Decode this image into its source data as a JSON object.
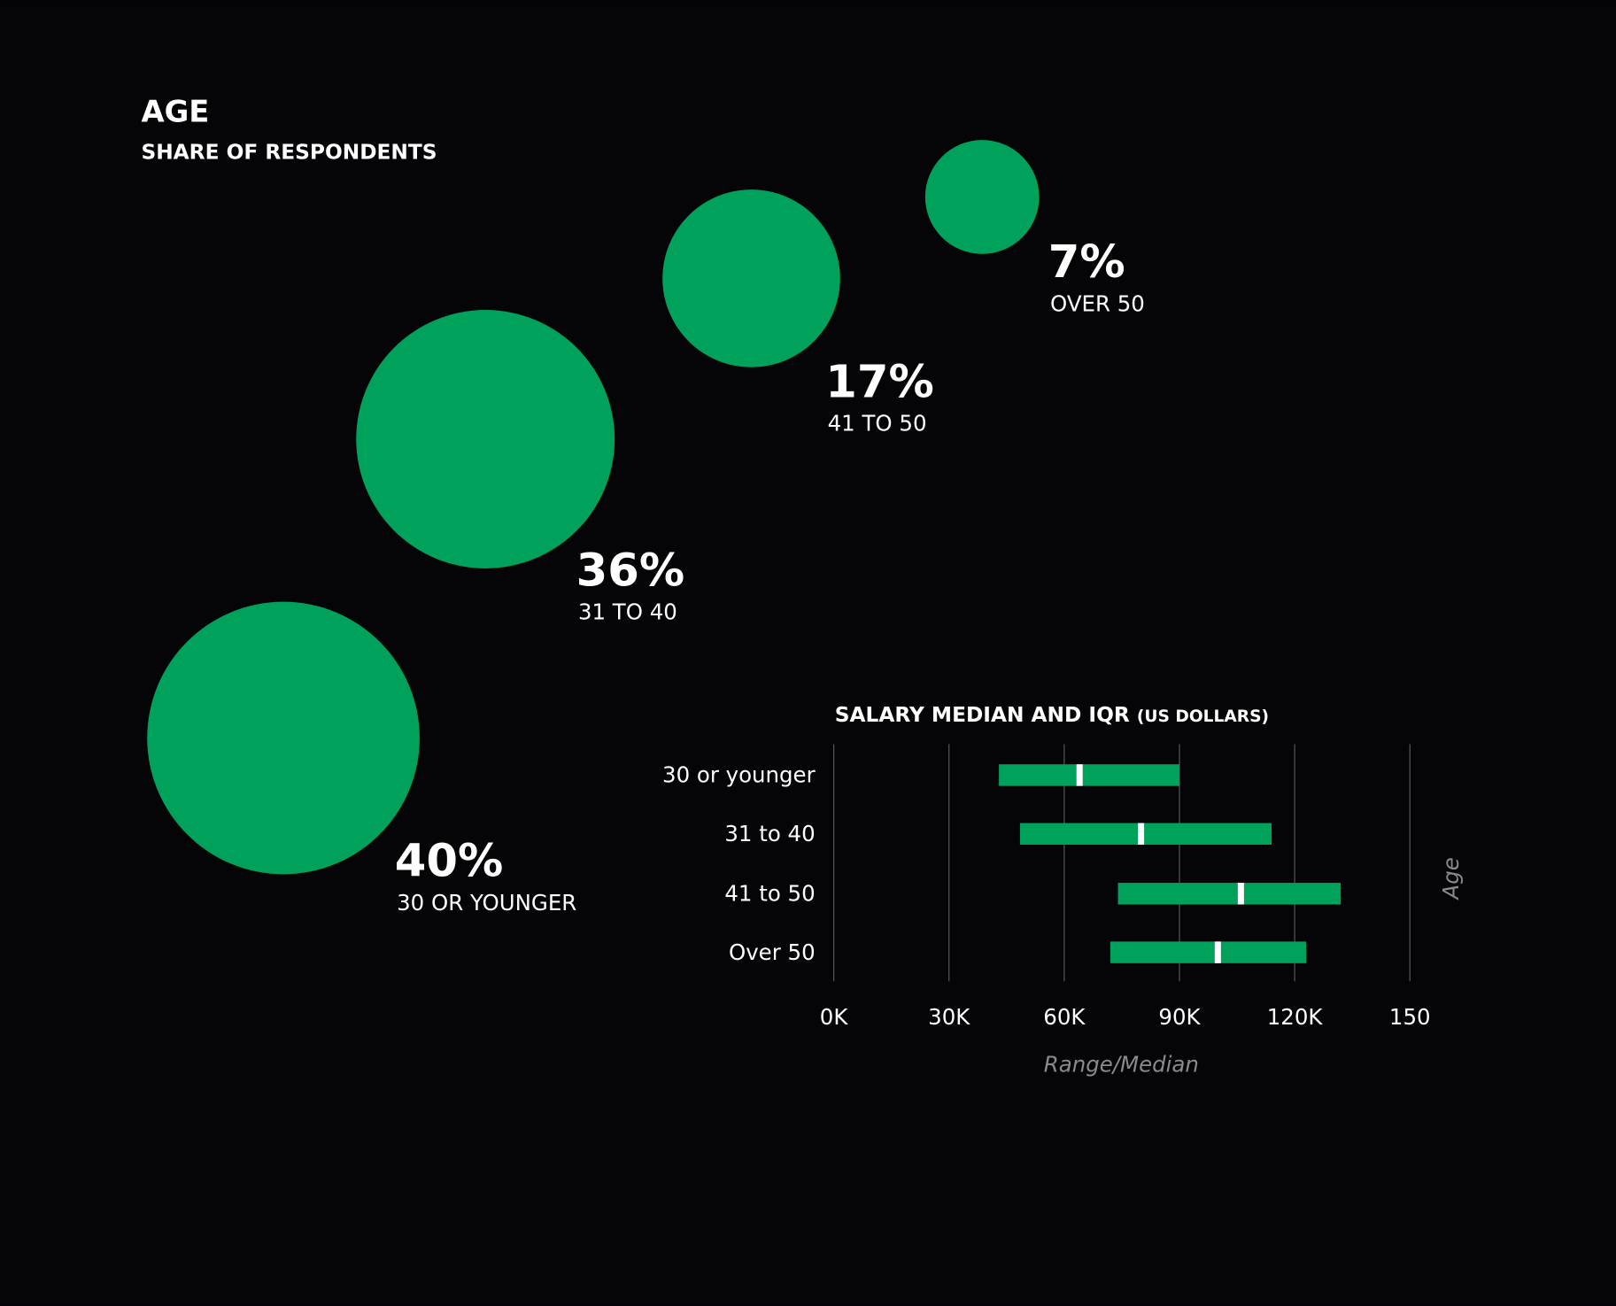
{
  "chart_data": [
    {
      "type": "bubble",
      "title": "AGE",
      "subtitle": "SHARE OF RESPONDENTS",
      "categories": [
        "30 OR YOUNGER",
        "31 TO 40",
        "41 TO 50",
        "OVER 50"
      ],
      "values": [
        40,
        36,
        17,
        7
      ],
      "value_labels": [
        "40%",
        "36%",
        "17%",
        "7%"
      ],
      "color": "#00a25b"
    },
    {
      "type": "range",
      "title": "SALARY MEDIAN AND IQR",
      "subtitle": "(US DOLLARS)",
      "categories": [
        "30 or younger",
        "31 to 40",
        "41 to 50",
        "Over 50"
      ],
      "low": [
        43,
        48.5,
        74,
        72
      ],
      "median": [
        64,
        80,
        106,
        100
      ],
      "high": [
        90,
        114,
        132,
        123
      ],
      "color": "#00a25b",
      "median_color": "#ffffff",
      "xlim": [
        0,
        150
      ],
      "xticks": [
        {
          "value": 0,
          "label": "0K"
        },
        {
          "value": 30,
          "label": "30K"
        },
        {
          "value": 60,
          "label": "60K"
        },
        {
          "value": 90,
          "label": "90K"
        },
        {
          "value": 120,
          "label": "120K"
        },
        150
      ],
      "grid": true,
      "xlabel": "Range/Median",
      "ylabel": "Age"
    }
  ]
}
